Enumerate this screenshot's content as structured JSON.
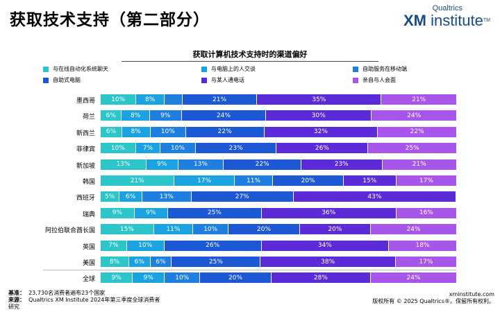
{
  "page_title": "获取技术支持（第二部分）",
  "logo": {
    "top": "Qualtrics",
    "brand_bold": "XM",
    "brand_rest": " institute",
    "tm": "TM",
    "color": "#1a4a8a"
  },
  "chart_data": {
    "type": "bar",
    "orientation": "horizontal",
    "stacked": true,
    "normalized": true,
    "title": "获取计算机技术支持时的渠道偏好",
    "legend_placement": "top",
    "categories": [
      "墨西哥",
      "荷兰",
      "新西兰",
      "菲律宾",
      "新加坡",
      "韩国",
      "西班牙",
      "瑞典",
      "阿拉伯联合酋长国",
      "英国",
      "美国",
      "全球"
    ],
    "series": [
      {
        "name": "与在线自动化系统聊天",
        "color": "#2cc5c9",
        "values": [
          10,
          6,
          6,
          10,
          13,
          21,
          5,
          9,
          15,
          7,
          8,
          9
        ],
        "labels": [
          "10%",
          "6%",
          "6%",
          "10%",
          "13%",
          "21%",
          "5%",
          "9%",
          "15%",
          "7%",
          "8%",
          "9%"
        ]
      },
      {
        "name": "与电脑上的人交谈",
        "color": "#1aa3e0",
        "values": [
          8,
          8,
          8,
          7,
          9,
          17,
          6,
          9,
          11,
          10,
          6,
          9
        ],
        "labels": [
          "8%",
          "8%",
          "8%",
          "7%",
          "9%",
          "17%",
          "6%",
          "9%",
          "11%",
          "10%",
          "6%",
          "9%"
        ]
      },
      {
        "name": "自助服务在移动端",
        "color": "#1f7fe0",
        "values": [
          5,
          9,
          10,
          10,
          13,
          11,
          13,
          0,
          10,
          0,
          6,
          10
        ],
        "labels": [
          "",
          "9%",
          "10%",
          "10%",
          "13%",
          "11%",
          "13%",
          "",
          "10%",
          "",
          "6%",
          "10%"
        ]
      },
      {
        "name": "自助式电脑",
        "color": "#1c58d4",
        "values": [
          21,
          24,
          22,
          23,
          22,
          20,
          27,
          25,
          20,
          26,
          25,
          20
        ],
        "labels": [
          "21%",
          "24%",
          "22%",
          "23%",
          "22%",
          "20%",
          "27%",
          "25%",
          "20%",
          "26%",
          "25%",
          "20%"
        ]
      },
      {
        "name": "与某人通电话",
        "color": "#5b2ad9",
        "values": [
          35,
          30,
          32,
          26,
          23,
          15,
          43,
          36,
          20,
          34,
          38,
          28
        ],
        "labels": [
          "35%",
          "30%",
          "32%",
          "26%",
          "23%",
          "15%",
          "43%",
          "36%",
          "20%",
          "34%",
          "38%",
          "28%"
        ]
      },
      {
        "name": "亲自与人会面",
        "color": "#a855ea",
        "values": [
          21,
          24,
          22,
          25,
          21,
          17,
          0,
          16,
          24,
          18,
          17,
          24
        ],
        "labels": [
          "21%",
          "24%",
          "22%",
          "25%",
          "21%",
          "17%",
          "",
          "16%",
          "24%",
          "18%",
          "17%",
          "24%"
        ]
      }
    ],
    "value_display": "percent"
  },
  "footer": {
    "base_label": "基准：",
    "base_value": "23,730名消费者遍布23个国家",
    "source_label": "来源：",
    "source_value": "Qualtrics XM Institute 2024年第三季度全球消费者",
    "source_value_cont": "研究",
    "site": "xminstitute.com",
    "copyright": "版权所有 © 2025 Qualtrics®。保留所有权利。"
  }
}
